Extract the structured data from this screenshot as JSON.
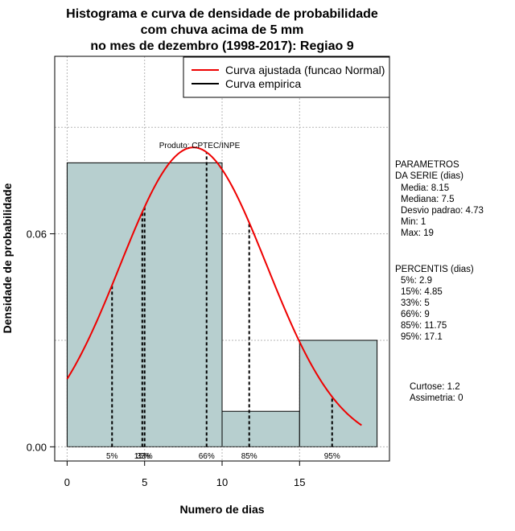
{
  "chart_data": {
    "type": "bar",
    "title_lines": [
      "Histograma e curva de densidade de probabilidade",
      "com chuva acima de 5 mm",
      "no mes de dezembro (1998-2017): Regiao 9"
    ],
    "xlabel": "Numero de dias",
    "ylabel": "Densidade de probabilidade",
    "xlim": [
      -0.8,
      20.8
    ],
    "ylim": [
      -0.004,
      0.11
    ],
    "x_ticks": [
      "0",
      "5",
      "10",
      "15"
    ],
    "y_ticks": [
      "0.00",
      "0.06"
    ],
    "grid": true,
    "bar_color": "#b7cfcf",
    "curve_color": "#ee0000",
    "bins": [
      {
        "x0": 0,
        "x1": 10,
        "density": 0.08
      },
      {
        "x0": 10,
        "x1": 15,
        "density": 0.01
      },
      {
        "x0": 15,
        "x1": 20,
        "density": 0.03
      }
    ],
    "normal_curve": {
      "mean": 8.15,
      "sd": 4.73,
      "x_start": 0,
      "x_end": 19.0
    },
    "percentiles": [
      {
        "label": "5%",
        "value": 2.9
      },
      {
        "label": "15%",
        "value": 4.85
      },
      {
        "label": "33%",
        "value": 5
      },
      {
        "label": "66%",
        "value": 9
      },
      {
        "label": "85%",
        "value": 11.75
      },
      {
        "label": "95%",
        "value": 17.1
      }
    ],
    "legend": {
      "position": "top-right",
      "entries": [
        {
          "label": "Curva ajustada (funcao Normal)",
          "color": "#ee0000"
        },
        {
          "label": "Curva empirica",
          "color": "#000000"
        }
      ]
    },
    "credit": "Produto: CPTEC/INPE"
  },
  "side_panel": {
    "params_title": [
      "PARAMETROS",
      "DA SERIE (dias)"
    ],
    "params": [
      "Media: 8.15",
      "Mediana: 7.5",
      "Desvio padrao: 4.73",
      "Min: 1",
      "Max: 19"
    ],
    "percentis_title": "PERCENTIS (dias)",
    "percentis": [
      "5%: 2.9",
      "15%: 4.85",
      "33%: 5",
      "66%: 9",
      "85%: 11.75",
      "95%: 17.1"
    ],
    "shape": [
      "Curtose: 1.2",
      "Assimetria: 0"
    ]
  }
}
